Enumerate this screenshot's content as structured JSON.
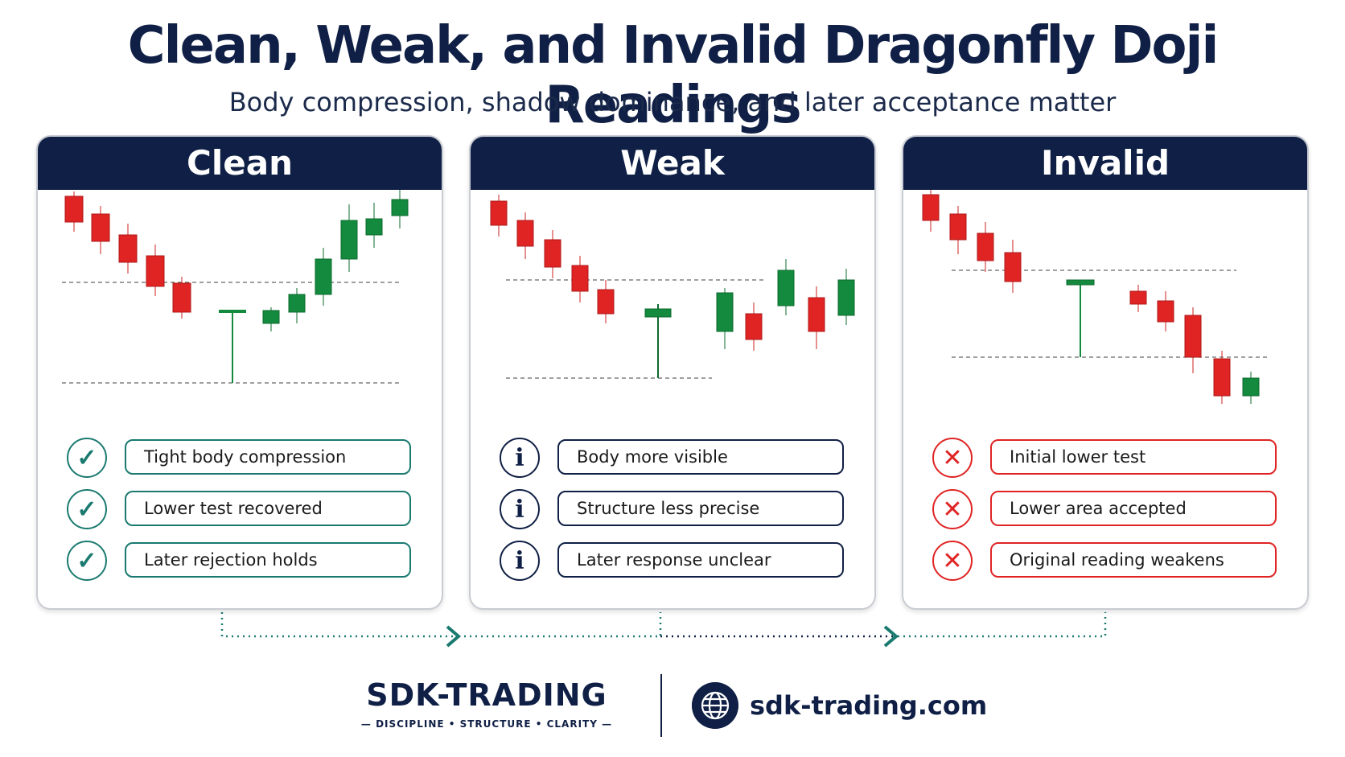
{
  "title": "Clean, Weak, and Invalid Dragonfly Doji Readings",
  "subtitle": "Body compression, shadow dominance, and later acceptance matter",
  "colors": {
    "navy": "#0f1f45",
    "green": "#138a3e",
    "red": "#e02424",
    "teal": "#1a7a70"
  },
  "panels": [
    {
      "title": "Clean",
      "badge_icon": "check-icon",
      "badge_color": "#1a7a70",
      "items": [
        "Tight body compression",
        "Lower test recovered",
        "Later rejection holds"
      ]
    },
    {
      "title": "Weak",
      "badge_icon": "info-icon",
      "badge_color": "#0f1f45",
      "items": [
        "Body more visible",
        "Structure less precise",
        "Later response unclear"
      ]
    },
    {
      "title": "Invalid",
      "badge_icon": "x-icon",
      "badge_color": "#e02424",
      "items": [
        "Initial lower test",
        "Lower area accepted",
        "Original reading weakens"
      ]
    }
  ],
  "footer": {
    "brand": "SDK-TRADING",
    "tagline": "— DISCIPLINE • STRUCTURE • CLARITY —",
    "site": "sdk-trading.com"
  }
}
